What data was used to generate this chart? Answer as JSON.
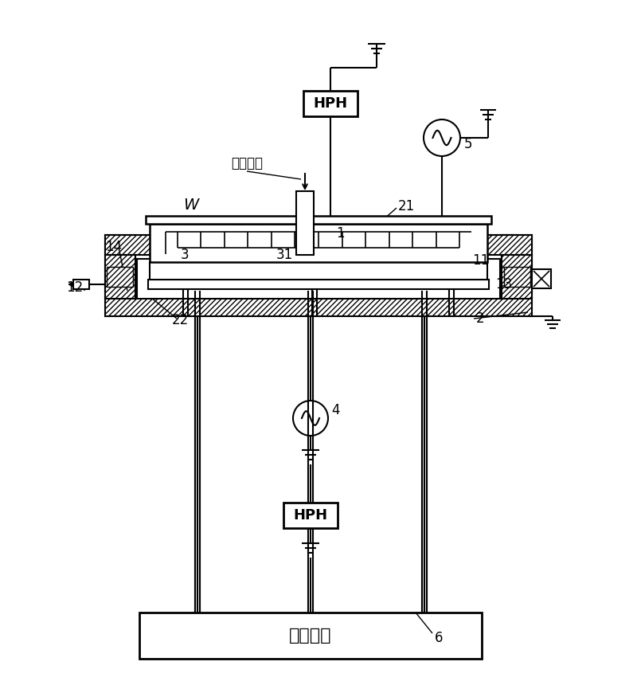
{
  "bg_color": "#ffffff",
  "labels": {
    "process_gas": "处理气体",
    "W": "W",
    "temp_device": "调温装置",
    "n1": "1",
    "n2": "2",
    "n3": "3",
    "n4": "4",
    "n5": "5",
    "n6": "6",
    "n11": "11",
    "n12": "12",
    "n13": "13",
    "n14": "14",
    "n21": "21",
    "n22": "22",
    "n31": "31"
  }
}
